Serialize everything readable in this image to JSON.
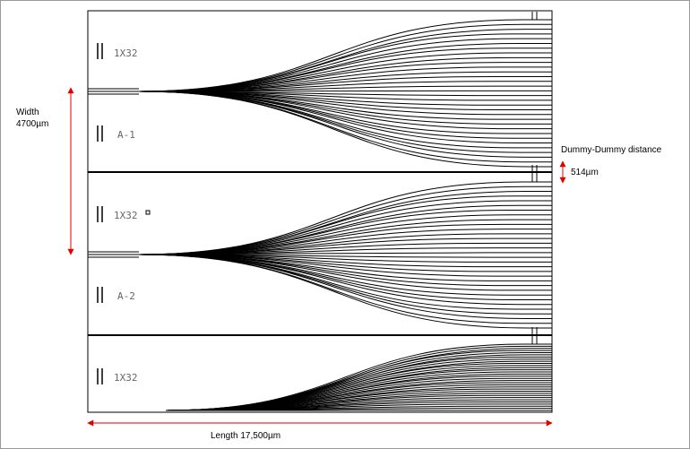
{
  "colors": {
    "waveguide": "#000000",
    "dimension_arrow": "#e00000",
    "label": "#666666"
  },
  "chips": [
    {
      "type_label": "1X32",
      "id_label": "A-1"
    },
    {
      "type_label": "1X32",
      "id_label": "A-2"
    },
    {
      "type_label": "1X32",
      "id_label": ""
    }
  ],
  "splitter_outputs": 32,
  "annotations": {
    "width_label": "Width",
    "width_value": "4700µm",
    "length_label": "Length  17,500µm",
    "dummy_label": "Dummy-Dummy distance",
    "dummy_value": "514µm"
  }
}
